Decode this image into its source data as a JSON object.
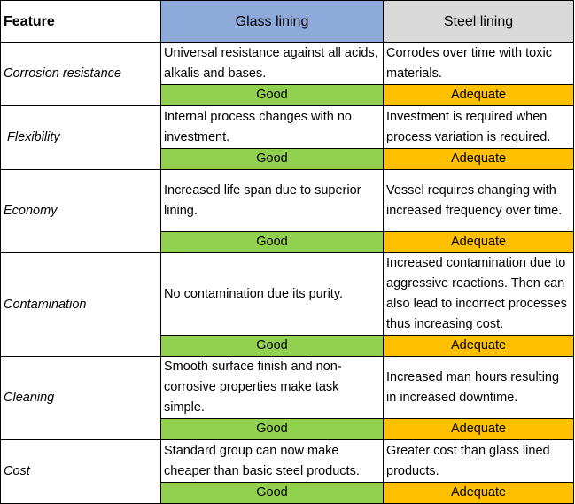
{
  "header": {
    "feature": "Feature",
    "glass": "Glass lining",
    "steel": "Steel lining"
  },
  "rows": [
    {
      "feature": "Corrosion resistance",
      "glass": "Universal resistance against all acids, alkalis and bases.",
      "steel": "Corrodes over time with toxic materials.",
      "glass_rating": "Good",
      "steel_rating": "Adequate"
    },
    {
      "feature": " Flexibility",
      "glass": "Internal process changes with no investment.",
      "steel": "Investment is required when process variation is required.",
      "glass_rating": "Good",
      "steel_rating": "Adequate"
    },
    {
      "feature": "Economy",
      "glass": "Increased life span due to superior lining.",
      "steel": "Vessel requires changing with increased frequency over time.",
      "glass_rating": "Good",
      "steel_rating": "Adequate"
    },
    {
      "feature": "Contamination",
      "glass": "No contamination due its purity.",
      "steel": "Increased contamination due to aggressive reactions. Then can also lead to incorrect processes thus increasing cost.",
      "glass_rating": "Good",
      "steel_rating": "Adequate"
    },
    {
      "feature": "Cleaning",
      "glass": "Smooth surface finish and non-corrosive properties make task simple.",
      "steel": "Increased man hours resulting in increased downtime.",
      "glass_rating": "Good",
      "steel_rating": "Adequate"
    },
    {
      "feature": "Cost",
      "glass": "Standard group can now make cheaper than basic steel products.",
      "steel": "Greater cost than glass lined products.",
      "glass_rating": "Good",
      "steel_rating": "Adequate"
    }
  ],
  "colors": {
    "glass_header": "#8eaadb",
    "steel_header": "#d9d9d9",
    "good": "#92d050",
    "adequate": "#ffc000"
  }
}
